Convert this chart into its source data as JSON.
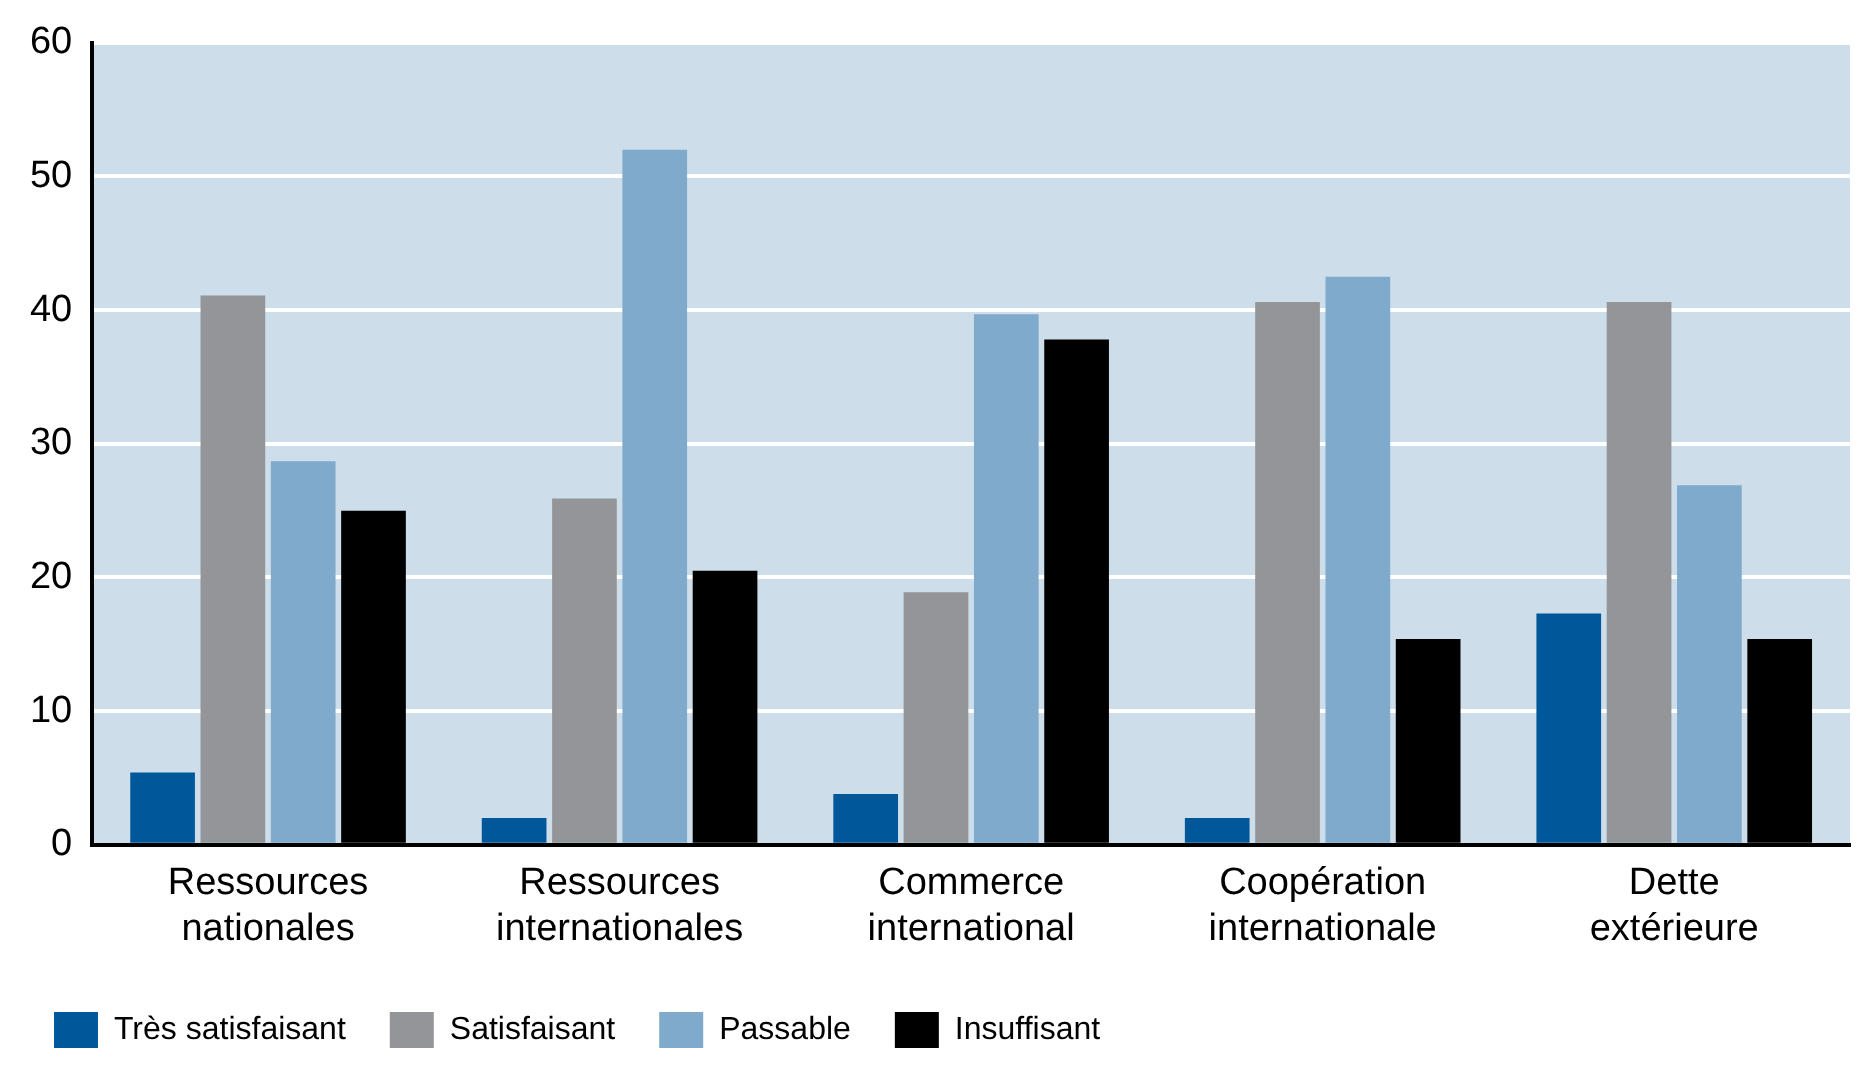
{
  "chart_data": {
    "type": "bar",
    "categories": [
      "Ressources nationales",
      "Ressources internationales",
      "Commerce international",
      "Coopération internationale",
      "Dette extérieure"
    ],
    "series": [
      {
        "name": "Très satisfaisant",
        "color": "#00589a",
        "values": [
          5.4,
          2.0,
          3.8,
          2.0,
          17.3
        ]
      },
      {
        "name": "Satisfaisant",
        "color": "#939598",
        "values": [
          41.1,
          25.9,
          18.9,
          40.6,
          40.6
        ]
      },
      {
        "name": "Passable",
        "color": "#7faacb",
        "values": [
          28.7,
          52.0,
          39.7,
          42.5,
          26.9
        ]
      },
      {
        "name": "Insuffisant",
        "color": "#000000",
        "values": [
          25.0,
          20.5,
          37.8,
          15.4,
          15.4
        ]
      }
    ],
    "ylim": [
      0,
      60
    ],
    "yticks": [
      0,
      10,
      20,
      30,
      40,
      50,
      60
    ],
    "grid": "y",
    "legend": "bottom left"
  }
}
